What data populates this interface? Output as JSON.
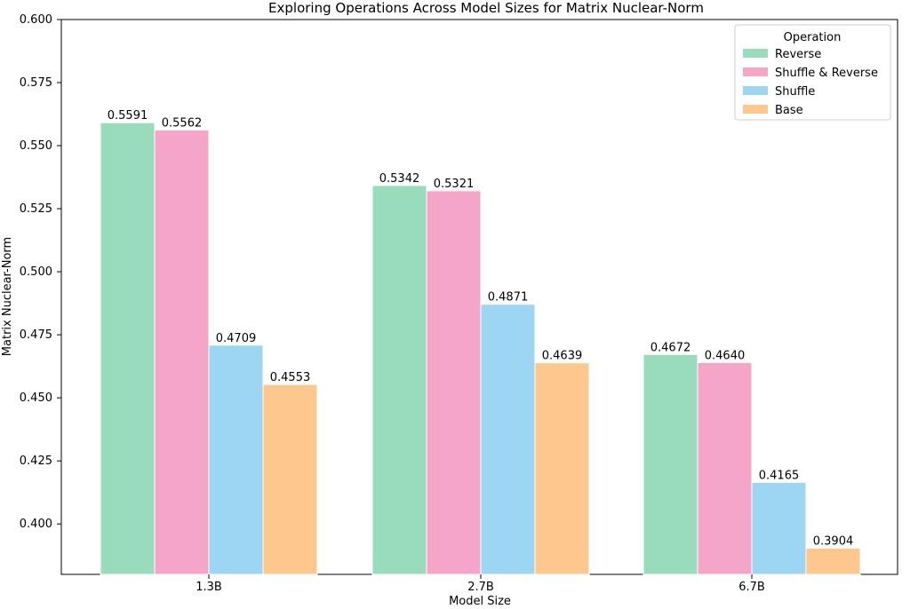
{
  "chart_data": {
    "type": "bar",
    "title": "Exploring Operations Across Model Sizes for Matrix Nuclear-Norm",
    "xlabel": "Model Size",
    "ylabel": "Matrix Nuclear-Norm",
    "categories": [
      "1.3B",
      "2.7B",
      "6.7B"
    ],
    "ylim": [
      0.38,
      0.6
    ],
    "yticks": [
      "0.400",
      "0.425",
      "0.450",
      "0.475",
      "0.500",
      "0.525",
      "0.550",
      "0.575",
      "0.600"
    ],
    "grid": false,
    "legend": {
      "title": "Operation",
      "placement": "top-right"
    },
    "series": [
      {
        "name": "Reverse",
        "color": "#98dcbc",
        "values": [
          0.5591,
          0.5342,
          0.4672
        ],
        "labels": [
          "0.5591",
          "0.5342",
          "0.4672"
        ]
      },
      {
        "name": "Shuffle & Reverse",
        "color": "#f5a5c7",
        "values": [
          0.5562,
          0.5321,
          0.464
        ],
        "labels": [
          "0.5562",
          "0.5321",
          "0.4640"
        ]
      },
      {
        "name": "Shuffle",
        "color": "#9dd6f2",
        "values": [
          0.4709,
          0.4871,
          0.4165
        ],
        "labels": [
          "0.4709",
          "0.4871",
          "0.4165"
        ]
      },
      {
        "name": "Base",
        "color": "#fcc88e",
        "values": [
          0.4553,
          0.4639,
          0.3904
        ],
        "labels": [
          "0.4553",
          "0.4639",
          "0.3904"
        ]
      }
    ]
  }
}
